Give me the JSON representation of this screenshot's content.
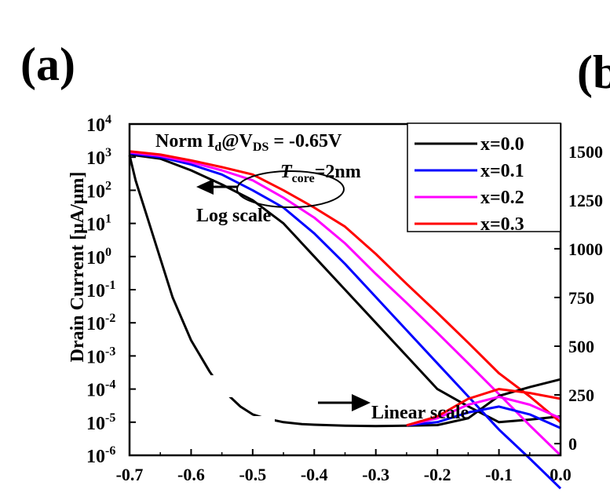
{
  "panel_label": "(a)",
  "next_panel_label_partial": "(b",
  "chart_data": {
    "type": "line",
    "xlabel": "",
    "ylabel": "Drain Current [μA/μm]",
    "xlim": [
      -0.7,
      0.0
    ],
    "x_ticks": [
      "-0.7",
      "-0.6",
      "-0.5",
      "-0.4",
      "-0.3",
      "-0.2",
      "-0.1",
      "0.0"
    ],
    "y_left_scale": "log",
    "y_left_lim": [
      1e-06,
      10000.0
    ],
    "y_left_ticks": [
      {
        "base": "10",
        "exp": "4"
      },
      {
        "base": "10",
        "exp": "3"
      },
      {
        "base": "10",
        "exp": "2"
      },
      {
        "base": "10",
        "exp": "1"
      },
      {
        "base": "10",
        "exp": "0"
      },
      {
        "base": "10",
        "exp": "-1"
      },
      {
        "base": "10",
        "exp": "-2"
      },
      {
        "base": "10",
        "exp": "-3"
      },
      {
        "base": "10",
        "exp": "-4"
      },
      {
        "base": "10",
        "exp": "-5"
      },
      {
        "base": "10",
        "exp": "-6"
      }
    ],
    "y_right_scale": "linear",
    "y_right_lim": [
      -60,
      1640
    ],
    "y_right_ticks": [
      "0",
      "250",
      "500",
      "750",
      "1000",
      "1250",
      "1500"
    ],
    "annotations": {
      "norm": {
        "prefix": "Norm I",
        "sub1": "d",
        "mid": "@V",
        "sub2": "DS",
        "suffix": " = -0.65V"
      },
      "tcore": {
        "t": "T",
        "sub": "core",
        "rest": "=2nm"
      },
      "log_scale": "Log scale",
      "linear_scale": "Linear scale"
    },
    "legend_position": "top-right",
    "series": [
      {
        "name": "x=0.0",
        "color": "#000000",
        "x": [
          -0.7,
          -0.65,
          -0.6,
          -0.55,
          -0.5,
          -0.45,
          -0.4,
          -0.35,
          -0.3,
          -0.25,
          -0.2,
          -0.15,
          -0.1,
          -0.05,
          0.0
        ],
        "y": [
          1200,
          900,
          400,
          150,
          50,
          10,
          1.0,
          0.1,
          0.01,
          0.001,
          0.0001,
          3e-05,
          1e-05,
          1.2e-05,
          1.5e-05
        ]
      },
      {
        "name": "x=0.1",
        "color": "#0000ff",
        "x": [
          -0.7,
          -0.65,
          -0.6,
          -0.55,
          -0.5,
          -0.45,
          -0.4,
          -0.35,
          -0.3,
          -0.25,
          -0.2,
          -0.15,
          -0.1,
          -0.05,
          0.0
        ],
        "y": [
          1300,
          1000,
          600,
          300,
          100,
          30,
          5,
          0.6,
          0.06,
          0.006,
          0.0006,
          6e-05,
          6e-06,
          8e-07,
          1e-07
        ]
      },
      {
        "name": "x=0.2",
        "color": "#ff00ff",
        "x": [
          -0.7,
          -0.65,
          -0.6,
          -0.55,
          -0.5,
          -0.45,
          -0.4,
          -0.35,
          -0.3,
          -0.25,
          -0.2,
          -0.15,
          -0.1,
          -0.05,
          0.0
        ],
        "y": [
          1400,
          1100,
          700,
          400,
          200,
          60,
          15,
          2.5,
          0.3,
          0.04,
          0.005,
          0.0006,
          7e-05,
          8e-06,
          1e-06
        ]
      },
      {
        "name": "x=0.3",
        "color": "#ff0000",
        "x": [
          -0.7,
          -0.65,
          -0.6,
          -0.55,
          -0.5,
          -0.45,
          -0.4,
          -0.35,
          -0.3,
          -0.25,
          -0.2,
          -0.15,
          -0.1,
          -0.05,
          0.0
        ],
        "y": [
          1500,
          1200,
          800,
          500,
          300,
          100,
          30,
          8,
          1.2,
          0.15,
          0.02,
          0.0025,
          0.0003,
          6e-05,
          1e-05
        ]
      }
    ],
    "linear_series": [
      {
        "name": "x=0.0",
        "color": "#000000",
        "x": [
          -0.7,
          -0.69,
          -0.67,
          -0.65,
          -0.63,
          -0.6,
          -0.57,
          -0.55,
          -0.52,
          -0.5,
          -0.48,
          -0.45,
          -0.42,
          -0.4,
          -0.35,
          -0.3,
          -0.25,
          -0.2,
          -0.15,
          -0.1,
          -0.05,
          0.0
        ],
        "y": [
          1480,
          1350,
          1150,
          950,
          750,
          530,
          370,
          280,
          190,
          150,
          130,
          110,
          100,
          97,
          92,
          90,
          92,
          95,
          130,
          245,
          290,
          330
        ]
      },
      {
        "name": "x=0.1",
        "color": "#0000ff",
        "x": [
          -0.25,
          -0.2,
          -0.15,
          -0.1,
          -0.05,
          0.0
        ],
        "y": [
          94,
          110,
          160,
          190,
          150,
          80
        ]
      },
      {
        "name": "x=0.2",
        "color": "#ff00ff",
        "x": [
          -0.25,
          -0.2,
          -0.15,
          -0.1,
          -0.05,
          0.0
        ],
        "y": [
          94,
          130,
          200,
          240,
          200,
          130
        ]
      },
      {
        "name": "x=0.3",
        "color": "#ff0000",
        "x": [
          -0.25,
          -0.2,
          -0.15,
          -0.1,
          -0.05,
          0.0
        ],
        "y": [
          94,
          140,
          230,
          280,
          260,
          230
        ]
      }
    ]
  }
}
